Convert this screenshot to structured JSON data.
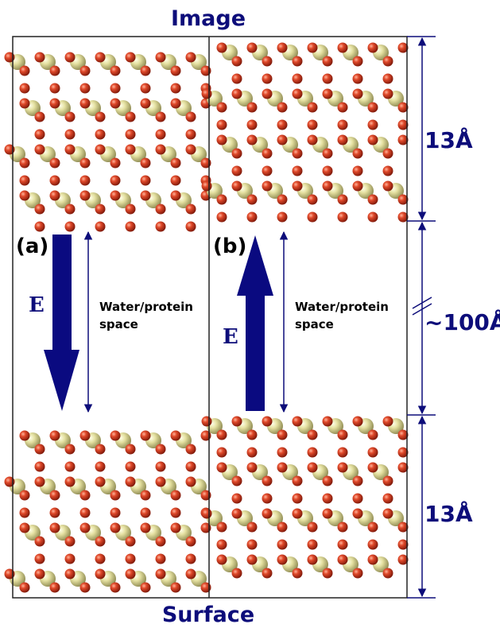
{
  "title_top": "Image",
  "title_bottom": "Surface",
  "panels": [
    {
      "label": "(a)",
      "field_label": "E",
      "space_label": [
        "Water/protein",
        "space"
      ]
    },
    {
      "label": "(b)",
      "field_label": "E",
      "space_label": [
        "Water/protein",
        "space"
      ]
    }
  ],
  "dimensions": [
    "13Å",
    "~100Å",
    "13Å"
  ]
}
